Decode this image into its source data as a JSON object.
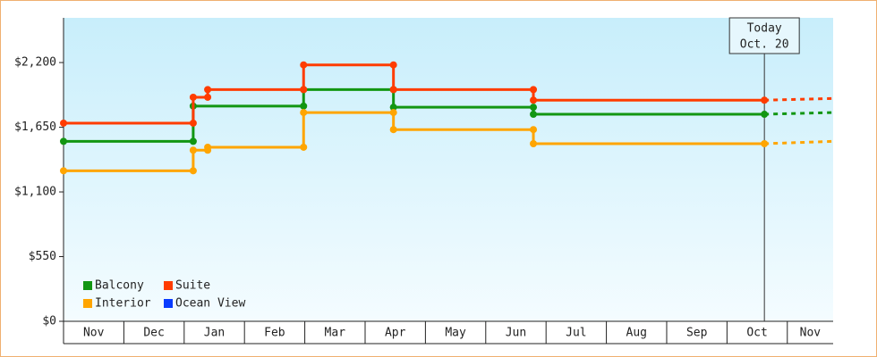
{
  "chart_data": {
    "type": "line",
    "xlim": [
      0,
      12.76
    ],
    "xticks": [
      {
        "value": 0.5,
        "label": "Nov"
      },
      {
        "value": 1.5,
        "label": "Dec"
      },
      {
        "value": 2.5,
        "label": "Jan"
      },
      {
        "value": 3.5,
        "label": "Feb"
      },
      {
        "value": 4.5,
        "label": "Mar"
      },
      {
        "value": 5.5,
        "label": "Apr"
      },
      {
        "value": 6.5,
        "label": "May"
      },
      {
        "value": 7.5,
        "label": "Jun"
      },
      {
        "value": 8.5,
        "label": "Jul"
      },
      {
        "value": 9.5,
        "label": "Aug"
      },
      {
        "value": 10.5,
        "label": "Sep"
      },
      {
        "value": 11.5,
        "label": "Oct"
      },
      {
        "value": 12.38,
        "label": "Nov"
      }
    ],
    "ylim": [
      0,
      2580
    ],
    "yticks": [
      {
        "value": 0,
        "label": "$0"
      },
      {
        "value": 550,
        "label": "$550"
      },
      {
        "value": 1100,
        "label": "$1,100"
      },
      {
        "value": 1650,
        "label": "$1,650"
      },
      {
        "value": 2200,
        "label": "$2,200"
      }
    ],
    "legend": "lower left",
    "today": {
      "x": 11.62,
      "label": "Today",
      "date": "Oct. 20"
    },
    "series": [
      {
        "name": "Balcony",
        "color": "#129612",
        "x": [
          0,
          2.15,
          2.15,
          3.98,
          3.98,
          5.47,
          5.47,
          7.79,
          7.79,
          11.62
        ],
        "values": [
          1530,
          1530,
          1830,
          1830,
          1970,
          1970,
          1820,
          1820,
          1760,
          1760
        ],
        "projection": {
          "x": [
            11.62,
            12.76
          ],
          "values": [
            1760,
            1775
          ]
        }
      },
      {
        "name": "Suite",
        "color": "#ff3c00",
        "x": [
          0,
          2.15,
          2.15,
          2.39,
          2.39,
          3.98,
          3.98,
          5.47,
          5.47,
          7.79,
          7.79,
          11.62
        ],
        "values": [
          1685,
          1685,
          1905,
          1905,
          1970,
          1970,
          2180,
          2180,
          1970,
          1970,
          1880,
          1880
        ],
        "projection": {
          "x": [
            11.62,
            12.76
          ],
          "values": [
            1880,
            1895
          ]
        }
      },
      {
        "name": "Interior",
        "color": "#ffa500",
        "x": [
          0,
          2.15,
          2.15,
          2.39,
          2.39,
          3.98,
          3.98,
          5.47,
          5.47,
          7.79,
          7.79,
          11.62
        ],
        "values": [
          1280,
          1280,
          1455,
          1455,
          1480,
          1480,
          1775,
          1775,
          1630,
          1630,
          1510,
          1510
        ],
        "projection": {
          "x": [
            11.62,
            12.76
          ],
          "values": [
            1510,
            1530
          ]
        }
      },
      {
        "name": "Ocean View",
        "color": "#0a3cff",
        "x": [],
        "values": []
      }
    ]
  }
}
